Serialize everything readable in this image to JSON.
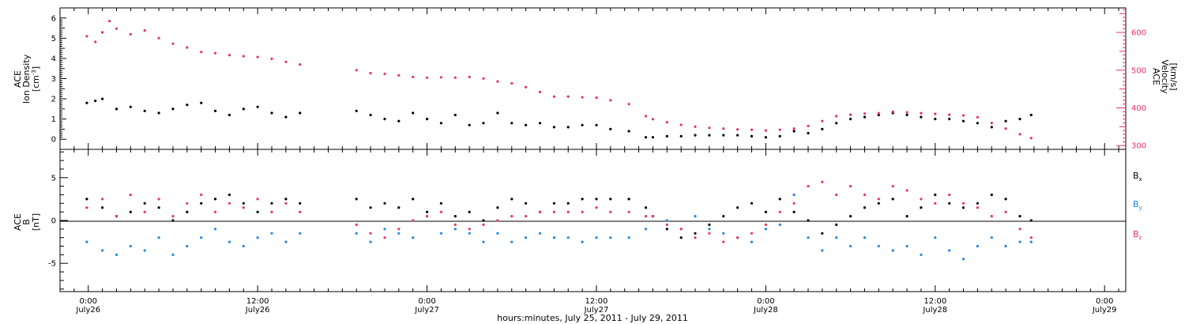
{
  "chart_data": [
    {
      "type": "scatter",
      "panel": "top",
      "ylabel_left": [
        "ACE",
        "Ion Density",
        "[cm^-3]"
      ],
      "ylabel_right": [
        "ACE",
        "Velocity",
        "[km/s]"
      ],
      "y_left_lim": [
        -0.5,
        6.5
      ],
      "y_left_ticks": [
        "0",
        "1",
        "2",
        "3",
        "4",
        "5",
        "6"
      ],
      "y_right_lim": [
        290,
        665
      ],
      "y_right_ticks": [
        "300",
        "400",
        "500",
        "600"
      ],
      "series": [
        {
          "axis": "left",
          "color": "#000000",
          "x": [
            -0.1,
            0.5,
            1.0,
            2.0,
            3.0,
            4.0,
            5.0,
            6.0,
            7.0,
            8.0,
            9.0,
            10.0,
            11.0,
            12.0,
            13.0,
            14.0,
            15.0,
            19.0,
            20.0,
            21.0,
            22.0,
            23.0,
            24.0,
            25.0,
            26.0,
            27.0,
            28.0,
            29.0,
            30.0,
            31.0,
            32.0,
            33.0,
            34.0,
            35.0,
            36.0,
            37.0,
            38.3,
            39.5,
            40.0,
            41.0,
            42.0,
            43.0,
            44.0,
            45.0,
            46.0,
            47.0,
            48.0,
            49.0,
            50.0,
            51.0,
            52.0,
            53.0,
            54.0,
            55.0,
            56.0,
            57.0,
            58.0,
            59.0,
            60.0,
            61.0,
            62.0,
            63.0,
            64.0,
            65.0,
            66.0,
            66.8
          ],
          "y": [
            1.8,
            1.9,
            2.0,
            1.5,
            1.6,
            1.4,
            1.3,
            1.5,
            1.7,
            1.8,
            1.4,
            1.2,
            1.5,
            1.6,
            1.3,
            1.1,
            1.3,
            1.4,
            1.2,
            1.0,
            0.9,
            1.3,
            1.0,
            0.8,
            1.2,
            0.7,
            0.8,
            1.3,
            0.8,
            0.7,
            0.8,
            0.6,
            0.6,
            0.7,
            0.7,
            0.5,
            0.4,
            0.1,
            0.1,
            0.15,
            0.15,
            0.2,
            0.2,
            0.2,
            0.2,
            0.15,
            0.1,
            0.15,
            0.4,
            0.3,
            0.5,
            0.8,
            1.0,
            1.1,
            1.2,
            1.3,
            1.2,
            1.1,
            1.0,
            1.0,
            0.9,
            0.8,
            0.6,
            0.9,
            1.0,
            1.2
          ]
        },
        {
          "axis": "right",
          "color": "#e8326a",
          "x": [
            -0.1,
            0.5,
            1.0,
            1.5,
            2.0,
            3.0,
            4.0,
            5.0,
            6.0,
            7.0,
            8.0,
            9.0,
            10.0,
            11.0,
            12.0,
            13.0,
            14.0,
            15.0,
            19.0,
            20.0,
            21.0,
            22.0,
            23.0,
            24.0,
            25.0,
            26.0,
            27.0,
            28.0,
            29.0,
            30.0,
            31.0,
            32.0,
            33.0,
            34.0,
            35.0,
            36.0,
            37.0,
            38.3,
            39.5,
            40.0,
            41.0,
            42.0,
            43.0,
            44.0,
            45.0,
            46.0,
            47.0,
            48.0,
            49.0,
            50.0,
            51.0,
            52.0,
            53.0,
            54.0,
            55.0,
            56.0,
            57.0,
            58.0,
            59.0,
            60.0,
            61.0,
            62.0,
            63.0,
            64.0,
            65.0,
            66.0,
            66.8
          ],
          "y": [
            590,
            575,
            600,
            630,
            610,
            595,
            605,
            585,
            570,
            560,
            548,
            545,
            540,
            537,
            535,
            530,
            522,
            515,
            500,
            492,
            490,
            486,
            482,
            480,
            481,
            480,
            482,
            478,
            470,
            465,
            455,
            442,
            430,
            430,
            428,
            427,
            420,
            410,
            378,
            370,
            362,
            355,
            350,
            347,
            345,
            343,
            342,
            340,
            342,
            345,
            352,
            365,
            378,
            382,
            385,
            386,
            390,
            388,
            386,
            384,
            382,
            380,
            375,
            360,
            345,
            330,
            320
          ]
        }
      ]
    },
    {
      "type": "scatter",
      "panel": "bottom",
      "ylabel_left": [
        "ACE",
        "B",
        "[nT]"
      ],
      "y_lim": [
        -8.3,
        8.3
      ],
      "y_ticks": [
        "-5",
        "0",
        "5"
      ],
      "legend": [
        "Bx",
        "By",
        "Bz"
      ],
      "legend_placement": "right",
      "series": [
        {
          "name": "Bx",
          "color": "#000000",
          "x": [
            -0.1,
            1.0,
            2.0,
            3.0,
            4.0,
            5.0,
            6.0,
            7.0,
            8.0,
            9.0,
            10.0,
            11.0,
            12.0,
            13.0,
            14.0,
            15.0,
            19.0,
            20.0,
            21.0,
            22.0,
            23.0,
            24.0,
            25.0,
            26.0,
            27.0,
            28.0,
            29.0,
            30.0,
            31.0,
            32.0,
            33.0,
            34.0,
            35.0,
            36.0,
            37.0,
            38.3,
            39.5,
            40.0,
            41.0,
            42.0,
            43.0,
            44.0,
            45.0,
            46.0,
            47.0,
            48.0,
            49.0,
            50.0,
            51.0,
            52.0,
            53.0,
            54.0,
            55.0,
            56.0,
            57.0,
            58.0,
            59.0,
            60.0,
            61.0,
            62.0,
            63.0,
            64.0,
            65.0,
            66.0,
            66.8
          ],
          "y": [
            2.5,
            1.5,
            0.5,
            1.0,
            2.0,
            1.5,
            0.0,
            1.0,
            2.0,
            2.5,
            3.0,
            2.0,
            1.0,
            2.0,
            2.5,
            2.0,
            2.5,
            1.5,
            2.0,
            1.5,
            2.5,
            1.0,
            2.0,
            0.5,
            1.0,
            0.0,
            1.5,
            2.5,
            2.0,
            1.0,
            2.0,
            2.0,
            2.5,
            2.5,
            2.5,
            2.5,
            1.5,
            0.5,
            -1.0,
            -2.0,
            -1.5,
            -0.5,
            0.5,
            1.5,
            2.0,
            1.0,
            2.5,
            1.0,
            0.0,
            -1.5,
            -0.5,
            0.5,
            1.5,
            2.0,
            2.5,
            0.5,
            1.5,
            3.0,
            2.0,
            1.5,
            2.0,
            3.0,
            2.5,
            0.5,
            0.0
          ]
        },
        {
          "name": "By",
          "color": "#1e88e5",
          "x": [
            -0.1,
            1.0,
            2.0,
            3.0,
            4.0,
            5.0,
            6.0,
            7.0,
            8.0,
            9.0,
            10.0,
            11.0,
            12.0,
            13.0,
            14.0,
            15.0,
            19.0,
            20.0,
            21.0,
            22.0,
            23.0,
            24.0,
            25.0,
            26.0,
            27.0,
            28.0,
            29.0,
            30.0,
            31.0,
            32.0,
            33.0,
            34.0,
            35.0,
            36.0,
            37.0,
            38.3,
            39.5,
            40.0,
            41.0,
            42.0,
            43.0,
            44.0,
            45.0,
            46.0,
            47.0,
            48.0,
            49.0,
            50.0,
            51.0,
            52.0,
            53.0,
            54.0,
            55.0,
            56.0,
            57.0,
            58.0,
            59.0,
            60.0,
            61.0,
            62.0,
            63.0,
            64.0,
            65.0,
            66.0,
            66.8
          ],
          "y": [
            -2.5,
            -3.5,
            -4.0,
            -3.0,
            -3.5,
            -2.0,
            -4.0,
            -3.0,
            -2.0,
            -1.0,
            -2.5,
            -3.0,
            -2.0,
            -1.5,
            -2.5,
            -1.5,
            -1.5,
            -2.5,
            -1.0,
            -1.5,
            -2.0,
            0.5,
            -1.5,
            -1.0,
            -1.5,
            -2.5,
            -1.5,
            -2.5,
            -2.0,
            -1.5,
            -2.0,
            -2.0,
            -2.5,
            -2.0,
            -2.0,
            -2.0,
            -1.0,
            0.5,
            0.0,
            -1.0,
            0.5,
            -1.0,
            -1.5,
            -2.0,
            -2.5,
            -1.0,
            -0.5,
            3.0,
            -2.0,
            -3.5,
            -2.0,
            -3.0,
            -2.0,
            -3.0,
            -3.5,
            -3.0,
            -4.0,
            -2.0,
            -3.5,
            -4.5,
            -3.0,
            -2.0,
            -3.0,
            -2.5,
            -2.5
          ]
        },
        {
          "name": "Bz",
          "color": "#e8326a",
          "x": [
            -0.1,
            1.0,
            2.0,
            3.0,
            4.0,
            5.0,
            6.0,
            7.0,
            8.0,
            9.0,
            10.0,
            11.0,
            12.0,
            13.0,
            14.0,
            15.0,
            19.0,
            20.0,
            21.0,
            22.0,
            23.0,
            24.0,
            25.0,
            26.0,
            27.0,
            28.0,
            29.0,
            30.0,
            31.0,
            32.0,
            33.0,
            34.0,
            35.0,
            36.0,
            37.0,
            38.3,
            39.5,
            40.0,
            41.0,
            42.0,
            43.0,
            44.0,
            45.0,
            46.0,
            47.0,
            48.0,
            49.0,
            50.0,
            51.0,
            52.0,
            53.0,
            54.0,
            55.0,
            56.0,
            57.0,
            58.0,
            59.0,
            60.0,
            61.0,
            62.0,
            63.0,
            64.0,
            65.0,
            66.0,
            66.8
          ],
          "y": [
            1.5,
            2.5,
            0.5,
            3.0,
            1.0,
            2.5,
            0.5,
            2.0,
            3.0,
            1.0,
            2.0,
            1.5,
            2.5,
            1.0,
            2.0,
            1.0,
            -0.5,
            -1.5,
            -2.0,
            -1.0,
            0.0,
            0.5,
            1.0,
            -0.5,
            -1.0,
            -0.5,
            0.0,
            0.5,
            0.5,
            1.0,
            1.0,
            1.0,
            1.0,
            1.5,
            1.0,
            1.0,
            0.5,
            0.5,
            -0.5,
            -1.0,
            -2.0,
            -1.5,
            -2.5,
            -2.0,
            -1.5,
            -0.5,
            1.0,
            2.0,
            4.0,
            4.5,
            3.0,
            4.0,
            3.0,
            2.5,
            4.0,
            3.5,
            2.5,
            2.0,
            3.0,
            2.0,
            1.5,
            0.5,
            1.0,
            -1.0,
            -2.0
          ]
        }
      ]
    }
  ],
  "time_axis": {
    "xlim": [
      -2.0,
      73.5
    ],
    "ticks": [
      {
        "hour": 0,
        "time": "0:00",
        "date": "July26"
      },
      {
        "hour": 12,
        "time": "12:00",
        "date": "July26"
      },
      {
        "hour": 24,
        "time": "0:00",
        "date": "July27"
      },
      {
        "hour": 36,
        "time": "12:00",
        "date": "July27"
      },
      {
        "hour": 48,
        "time": "0:00",
        "date": "July28"
      },
      {
        "hour": 60,
        "time": "12:00",
        "date": "July28"
      },
      {
        "hour": 72,
        "time": "0:00",
        "date": "July29"
      }
    ],
    "label": "hours:minutes, July 25, 2011 - July 29, 2011"
  },
  "legend_text": {
    "bx": {
      "main": "B",
      "sub": "x"
    },
    "by": {
      "main": "B",
      "sub": "y"
    },
    "bz": {
      "main": "B",
      "sub": "z"
    }
  }
}
